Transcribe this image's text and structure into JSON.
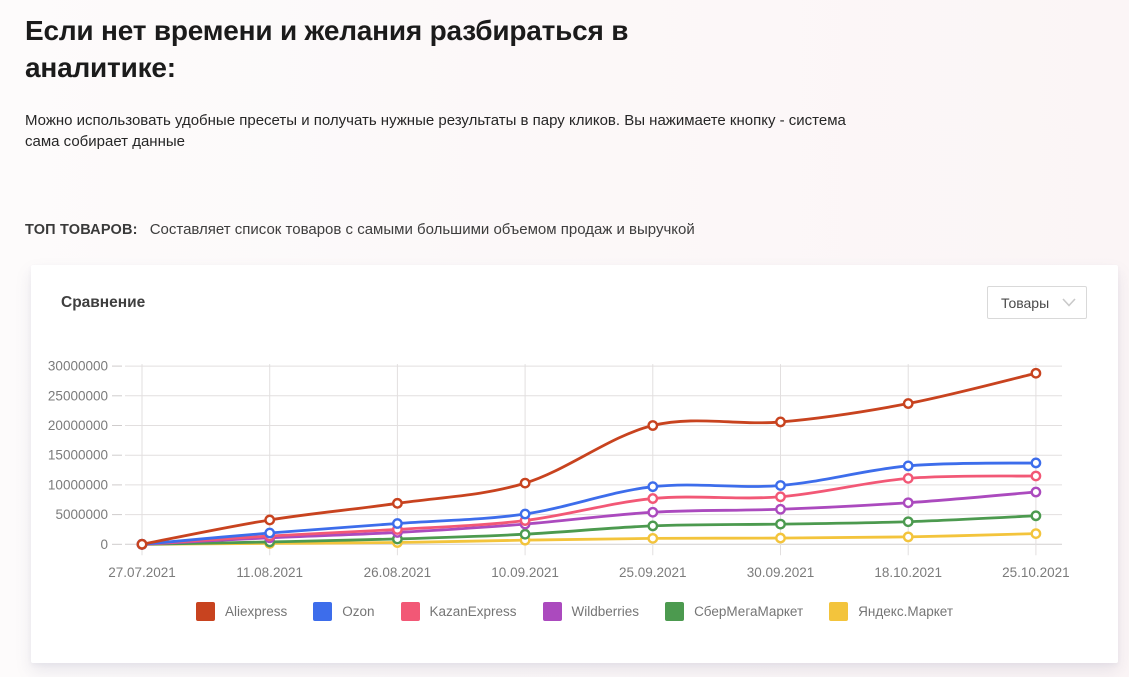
{
  "page": {
    "heading": "Если нет времени и желания разбираться в аналитике:",
    "subtitle": "Можно использовать удобные пресеты и получать нужные результаты в пару кликов. Вы нажимаете кнопку - система сама собирает данные",
    "preset_label": "ТОП ТОВАРОВ:",
    "preset_description": "Составляет список товаров с самыми большими объемом продаж и выручкой"
  },
  "card": {
    "title": "Сравнение",
    "dropdown": {
      "value": "Товары",
      "chevron_icon": "chevron-down"
    }
  },
  "chart_data": {
    "type": "line",
    "title": "Сравнение",
    "xlabel": "",
    "ylabel": "",
    "grid": true,
    "legend_position": "bottom",
    "curve": "smooth",
    "marker": "open-circle",
    "ylim": [
      0,
      30000000
    ],
    "ytick_step": 5000000,
    "ytick_labels": [
      "0",
      "5000000",
      "10000000",
      "15000000",
      "20000000",
      "25000000",
      "30000000"
    ],
    "categories": [
      "27.07.2021",
      "11.08.2021",
      "26.08.2021",
      "10.09.2021",
      "25.09.2021",
      "30.09.2021",
      "18.10.2021",
      "25.10.2021"
    ],
    "series": [
      {
        "name": "Aliexpress",
        "color": "#c8431f",
        "values": [
          0,
          4100000,
          6900000,
          10300000,
          20000000,
          20600000,
          23700000,
          28800000
        ]
      },
      {
        "name": "Ozon",
        "color": "#3d6deb",
        "values": [
          0,
          1900000,
          3500000,
          5100000,
          9700000,
          9900000,
          13200000,
          13700000
        ]
      },
      {
        "name": "KazanExpress",
        "color": "#f25876",
        "values": [
          0,
          1400000,
          2500000,
          4000000,
          7700000,
          8000000,
          11100000,
          11500000
        ]
      },
      {
        "name": "Wildberries",
        "color": "#ab4abe",
        "values": [
          0,
          1100000,
          2000000,
          3400000,
          5400000,
          5900000,
          7000000,
          8800000
        ]
      },
      {
        "name": "СберМегаМаркет",
        "color": "#4c9a4f",
        "values": [
          0,
          400000,
          900000,
          1700000,
          3100000,
          3400000,
          3800000,
          4800000
        ]
      },
      {
        "name": "Яндекс.Маркет",
        "color": "#f3c43c",
        "values": [
          0,
          150000,
          300000,
          700000,
          1000000,
          1050000,
          1250000,
          1800000
        ]
      }
    ],
    "axis_color": "#7b7b7b",
    "grid_color": "#e2dfdf"
  }
}
